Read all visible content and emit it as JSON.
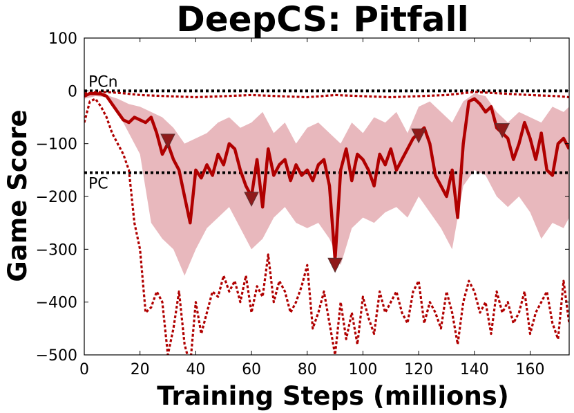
{
  "chart_data": {
    "type": "line",
    "title": "DeepCS: Pitfall",
    "xlabel": "Training Steps (millions)",
    "ylabel": "Game Score",
    "xlim": [
      0,
      174
    ],
    "ylim": [
      -500,
      100
    ],
    "xticks": [
      0,
      20,
      40,
      60,
      80,
      100,
      120,
      140,
      160
    ],
    "yticks": [
      100,
      0,
      -100,
      -200,
      -300,
      -400,
      -500
    ],
    "xtick_labels": [
      "0",
      "20",
      "40",
      "60",
      "80",
      "100",
      "120",
      "140",
      "160"
    ],
    "ytick_labels": [
      "100",
      "0",
      "−100",
      "−200",
      "−300",
      "−400",
      "−500"
    ],
    "reference_lines": [
      {
        "name": "PCn",
        "label": "PCn",
        "y": 0
      },
      {
        "name": "PC",
        "label": "PC",
        "y": -155
      }
    ],
    "series": [
      {
        "name": "mean",
        "style": "solid",
        "color": "#b00000",
        "x": [
          0,
          2,
          4,
          6,
          8,
          10,
          12,
          14,
          16,
          18,
          20,
          22,
          24,
          26,
          28,
          30,
          32,
          34,
          36,
          38,
          40,
          42,
          44,
          46,
          48,
          50,
          52,
          54,
          56,
          58,
          60,
          62,
          64,
          66,
          68,
          70,
          72,
          74,
          76,
          78,
          80,
          82,
          84,
          86,
          88,
          90,
          92,
          94,
          96,
          98,
          100,
          102,
          104,
          106,
          108,
          110,
          112,
          114,
          116,
          118,
          120,
          122,
          124,
          126,
          128,
          130,
          132,
          134,
          136,
          138,
          140,
          142,
          144,
          146,
          148,
          150,
          152,
          154,
          156,
          158,
          160,
          162,
          164,
          166,
          168,
          170,
          172,
          174
        ],
        "values": [
          -10,
          -5,
          -5,
          -6,
          -10,
          -25,
          -40,
          -55,
          -60,
          -50,
          -55,
          -60,
          -50,
          -80,
          -120,
          -100,
          -130,
          -150,
          -200,
          -250,
          -150,
          -165,
          -140,
          -160,
          -120,
          -140,
          -100,
          -110,
          -150,
          -180,
          -200,
          -130,
          -220,
          -110,
          -160,
          -140,
          -130,
          -170,
          -140,
          -160,
          -150,
          -170,
          -140,
          -130,
          -180,
          -320,
          -150,
          -110,
          -170,
          -120,
          -130,
          -150,
          -180,
          -120,
          -140,
          -110,
          -150,
          -130,
          -110,
          -90,
          -80,
          -70,
          -100,
          -160,
          -180,
          -200,
          -150,
          -240,
          -100,
          -20,
          -15,
          -25,
          -40,
          -30,
          -70,
          -80,
          -90,
          -130,
          -100,
          -60,
          -90,
          -130,
          -80,
          -150,
          -160,
          -100,
          -90,
          -110
        ]
      },
      {
        "name": "upper",
        "style": "dotted",
        "color": "#b00000",
        "x": [
          0,
          5,
          10,
          15,
          20,
          30,
          40,
          50,
          60,
          70,
          80,
          90,
          100,
          110,
          120,
          130,
          140,
          150,
          160,
          170,
          174
        ],
        "values": [
          -5,
          -2,
          -3,
          -5,
          -8,
          -10,
          -12,
          -10,
          -8,
          -10,
          -12,
          -8,
          -10,
          -12,
          -10,
          -8,
          -2,
          -5,
          -8,
          -10,
          -12
        ]
      },
      {
        "name": "lower",
        "style": "dotted",
        "color": "#b00000",
        "x": [
          0,
          2,
          4,
          6,
          8,
          10,
          12,
          14,
          16,
          18,
          20,
          22,
          24,
          26,
          28,
          30,
          32,
          34,
          36,
          38,
          40,
          42,
          44,
          46,
          48,
          50,
          52,
          54,
          56,
          58,
          60,
          62,
          64,
          66,
          68,
          70,
          72,
          74,
          76,
          78,
          80,
          82,
          84,
          86,
          88,
          90,
          92,
          94,
          96,
          98,
          100,
          102,
          104,
          106,
          108,
          110,
          112,
          114,
          116,
          118,
          120,
          122,
          124,
          126,
          128,
          130,
          132,
          134,
          136,
          138,
          140,
          142,
          144,
          146,
          148,
          150,
          152,
          154,
          156,
          158,
          160,
          162,
          164,
          166,
          168,
          170,
          172,
          174
        ],
        "values": [
          -60,
          -20,
          -15,
          -30,
          -50,
          -80,
          -100,
          -120,
          -150,
          -250,
          -300,
          -420,
          -410,
          -380,
          -400,
          -500,
          -450,
          -380,
          -480,
          -520,
          -400,
          -460,
          -420,
          -380,
          -390,
          -350,
          -380,
          -360,
          -400,
          -350,
          -420,
          -370,
          -390,
          -310,
          -400,
          -360,
          -380,
          -420,
          -400,
          -370,
          -330,
          -450,
          -420,
          -380,
          -440,
          -500,
          -400,
          -470,
          -420,
          -480,
          -390,
          -430,
          -460,
          -380,
          -420,
          -400,
          -380,
          -420,
          -440,
          -380,
          -360,
          -440,
          -400,
          -420,
          -450,
          -380,
          -420,
          -480,
          -400,
          -360,
          -380,
          -420,
          -400,
          -460,
          -380,
          -420,
          -400,
          -440,
          -420,
          -380,
          -460,
          -420,
          -400,
          -380,
          -440,
          -470,
          -360,
          -440
        ]
      }
    ],
    "shaded_band": {
      "name": "std",
      "color": "#e8b8bd",
      "x": [
        0,
        4,
        8,
        12,
        16,
        20,
        24,
        28,
        32,
        36,
        40,
        44,
        48,
        52,
        56,
        60,
        64,
        68,
        72,
        76,
        80,
        84,
        88,
        92,
        96,
        100,
        104,
        108,
        112,
        116,
        120,
        124,
        128,
        132,
        136,
        140,
        144,
        148,
        152,
        156,
        160,
        164,
        168,
        172,
        174
      ],
      "upper": [
        -5,
        -3,
        -8,
        -15,
        -25,
        -30,
        -40,
        -50,
        -70,
        -100,
        -90,
        -80,
        -60,
        -50,
        -70,
        -60,
        -40,
        -80,
        -60,
        -100,
        -70,
        -60,
        -80,
        -100,
        -60,
        -80,
        -50,
        -60,
        -40,
        -80,
        -30,
        -20,
        -40,
        -60,
        -20,
        -5,
        -10,
        -40,
        -60,
        -40,
        -50,
        -60,
        -30,
        -40,
        -30
      ],
      "lower": [
        -15,
        -10,
        -12,
        -40,
        -80,
        -120,
        -250,
        -280,
        -300,
        -350,
        -300,
        -260,
        -240,
        -220,
        -260,
        -300,
        -280,
        -240,
        -220,
        -250,
        -260,
        -250,
        -280,
        -330,
        -260,
        -240,
        -250,
        -230,
        -220,
        -240,
        -200,
        -230,
        -260,
        -300,
        -180,
        -150,
        -160,
        -200,
        -220,
        -200,
        -230,
        -280,
        -250,
        -260,
        -240
      ]
    },
    "markers": [
      {
        "x": 30,
        "y": -95,
        "shape": "down-triangle"
      },
      {
        "x": 60,
        "y": -205,
        "shape": "down-triangle"
      },
      {
        "x": 90,
        "y": -330,
        "shape": "down-triangle"
      },
      {
        "x": 120,
        "y": -85,
        "shape": "down-triangle"
      },
      {
        "x": 150,
        "y": -75,
        "shape": "down-triangle"
      }
    ]
  }
}
